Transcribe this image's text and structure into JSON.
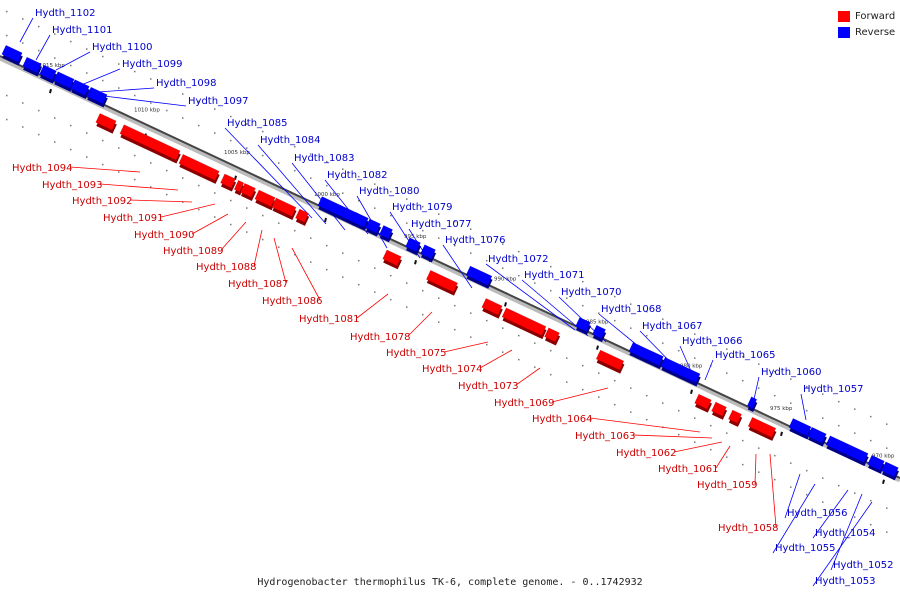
{
  "legend": {
    "forward_label": "Forward",
    "reverse_label": "Reverse",
    "forward_color": "#ff0000",
    "reverse_color": "#0000ff"
  },
  "caption": "Hydrogenobacter thermophilus TK-6, complete genome. - 0..1742932",
  "scale_labels": [
    "1015 kbp",
    "1010 kbp",
    "1005 kbp",
    "1000 kbp",
    "995 kbp",
    "990 kbp",
    "985 kbp",
    "980 kbp",
    "975 kbp",
    "970 kbp"
  ],
  "reverse_genes": [
    "Hydth_1102",
    "Hydth_1101",
    "Hydth_1100",
    "Hydth_1099",
    "Hydth_1098",
    "Hydth_1097",
    "Hydth_1085",
    "Hydth_1084",
    "Hydth_1083",
    "Hydth_1082",
    "Hydth_1080",
    "Hydth_1079",
    "Hydth_1077",
    "Hydth_1076",
    "Hydth_1072",
    "Hydth_1071",
    "Hydth_1070",
    "Hydth_1068",
    "Hydth_1067",
    "Hydth_1066",
    "Hydth_1065",
    "Hydth_1060",
    "Hydth_1057",
    "Hydth_1056",
    "Hydth_1055",
    "Hydth_1054",
    "Hydth_1052",
    "Hydth_1053"
  ],
  "forward_genes": [
    "Hydth_1094",
    "Hydth_1093",
    "Hydth_1092",
    "Hydth_1091",
    "Hydth_1090",
    "Hydth_1089",
    "Hydth_1088",
    "Hydth_1087",
    "Hydth_1086",
    "Hydth_1081",
    "Hydth_1078",
    "Hydth_1075",
    "Hydth_1074",
    "Hydth_1073",
    "Hydth_1069",
    "Hydth_1064",
    "Hydth_1063",
    "Hydth_1062",
    "Hydth_1061",
    "Hydth_1059",
    "Hydth_1058"
  ]
}
